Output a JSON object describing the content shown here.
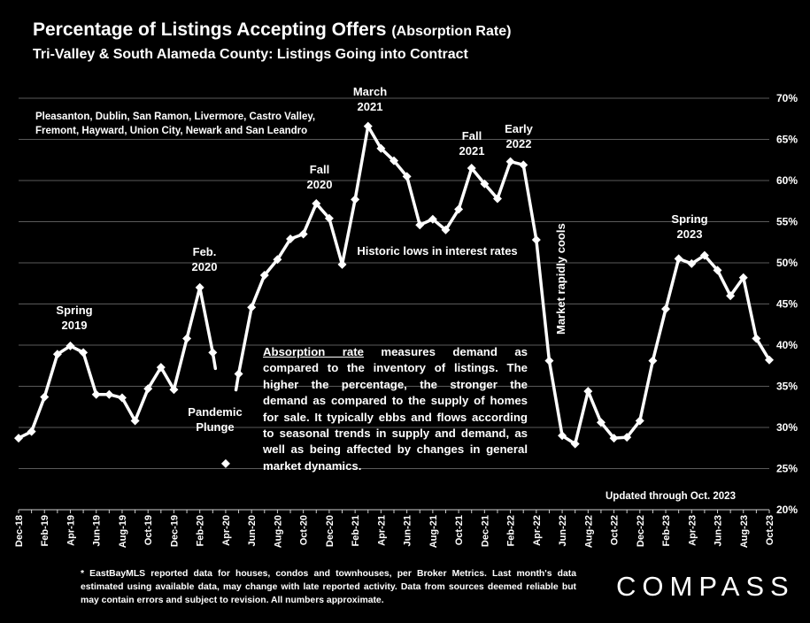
{
  "header": {
    "title": "Percentage of Listings Accepting Offers",
    "title_suffix": "(Absorption Rate)",
    "subtitle": "Tri-Valley & South Alameda County: Listings Going into Contract"
  },
  "cities_note_lines": [
    "Pleasanton, Dublin, San Ramon, Livermore, Castro Valley,",
    "Fremont, Hayward, Union City, Newark and San Leandro"
  ],
  "description": {
    "term": "Absorption rate",
    "text": " measures demand as compared to the inventory of listings. The higher the percentage, the stronger the demand as compared to the supply of homes for sale. It typically ebbs and flows according to seasonal trends in supply and demand, as well as being affected by changes in general market dynamics."
  },
  "updated_note": "Updated through Oct. 2023",
  "footnote": "* EastBayMLS reported data for houses, condos and townhouses, per Broker Metrics. Last month's data estimated using available data, may change with late reported activity. Data from sources deemed reliable but may contain errors and subject to revision. All numbers approximate.",
  "logo_text": "COMPASS",
  "annotations": {
    "spring_2019": [
      "Spring",
      "2019"
    ],
    "feb_2020": [
      "Feb.",
      "2020"
    ],
    "pandemic": [
      "Pandemic",
      "Plunge"
    ],
    "fall_2020": [
      "Fall",
      "2020"
    ],
    "march_2021": [
      "March",
      "2021"
    ],
    "fall_2021": [
      "Fall",
      "2021"
    ],
    "early_2022": [
      "Early",
      "2022"
    ],
    "interest_rates": [
      "Historic lows in interest rates"
    ],
    "market_cools": "Market rapidly cools",
    "spring_2023": [
      "Spring",
      "2023"
    ]
  },
  "chart_data": {
    "type": "line",
    "title": "Percentage of Listings Accepting Offers (Absorption Rate)",
    "ylim": [
      20,
      70
    ],
    "y_ticks": [
      "20%",
      "25%",
      "30%",
      "35%",
      "40%",
      "45%",
      "50%",
      "55%",
      "60%",
      "65%",
      "70%"
    ],
    "x_tick_labels": [
      "Dec-18",
      "Feb-19",
      "Apr-19",
      "Jun-19",
      "Aug-19",
      "Oct-19",
      "Dec-19",
      "Feb-20",
      "Apr-20",
      "Jun-20",
      "Aug-20",
      "Oct-20",
      "Dec-20",
      "Feb-21",
      "Apr-21",
      "Jun-21",
      "Aug-21",
      "Oct-21",
      "Dec-21",
      "Feb-22",
      "Apr-22",
      "Jun-22",
      "Aug-22",
      "Oct-22",
      "Dec-22",
      "Feb-23",
      "Apr-23",
      "Jun-23",
      "Aug-23",
      "Oct-23"
    ],
    "x": [
      "Dec-18",
      "Jan-19",
      "Feb-19",
      "Mar-19",
      "Apr-19",
      "May-19",
      "Jun-19",
      "Jul-19",
      "Aug-19",
      "Sep-19",
      "Oct-19",
      "Nov-19",
      "Dec-19",
      "Jan-20",
      "Feb-20",
      "Mar-20",
      "Apr-20",
      "May-20",
      "Jun-20",
      "Jul-20",
      "Aug-20",
      "Sep-20",
      "Oct-20",
      "Nov-20",
      "Dec-20",
      "Jan-21",
      "Feb-21",
      "Mar-21",
      "Apr-21",
      "May-21",
      "Jun-21",
      "Jul-21",
      "Aug-21",
      "Sep-21",
      "Oct-21",
      "Nov-21",
      "Dec-21",
      "Jan-22",
      "Feb-22",
      "Mar-22",
      "Apr-22",
      "May-22",
      "Jun-22",
      "Jul-22",
      "Aug-22",
      "Sep-22",
      "Oct-22",
      "Nov-22",
      "Dec-22",
      "Jan-23",
      "Feb-23",
      "Mar-23",
      "Apr-23",
      "May-23",
      "Jun-23",
      "Jul-23",
      "Aug-23",
      "Sep-23",
      "Oct-23"
    ],
    "values": [
      28.7,
      29.5,
      33.7,
      38.9,
      39.9,
      39.1,
      34.0,
      34.0,
      33.6,
      30.8,
      34.7,
      37.3,
      34.6,
      40.8,
      47.0,
      39.1,
      25.6,
      36.5,
      44.6,
      48.5,
      50.4,
      52.9,
      53.5,
      57.2,
      55.4,
      49.8,
      57.7,
      66.6,
      63.9,
      62.4,
      60.5,
      54.6,
      55.3,
      54.0,
      56.5,
      61.5,
      59.6,
      57.8,
      62.3,
      61.9,
      52.8,
      38.1,
      29.0,
      28.0,
      34.4,
      30.6,
      28.7,
      28.8,
      30.8,
      38.1,
      44.4,
      50.5,
      49.9,
      50.9,
      49.1,
      46.0,
      48.2,
      40.8,
      38.2
    ],
    "gaps": [
      [
        15,
        16
      ],
      [
        16,
        17
      ]
    ],
    "grid": "horizontal",
    "y_axis_position": "right"
  }
}
